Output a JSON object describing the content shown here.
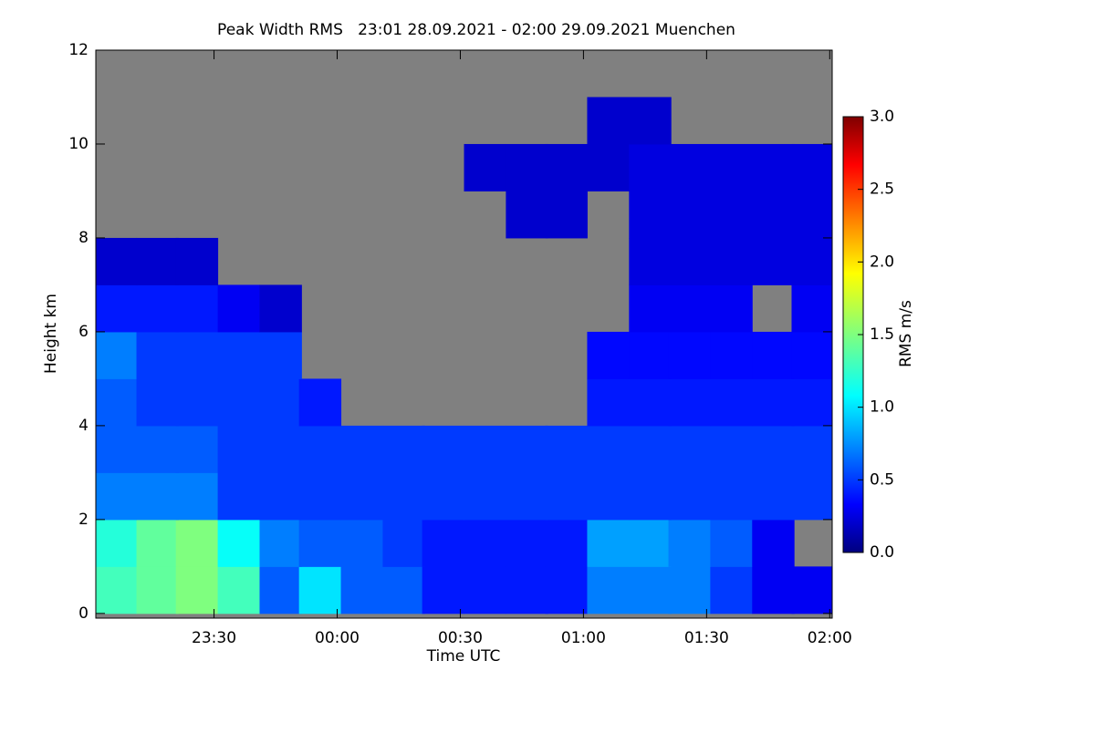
{
  "chart_data": {
    "type": "heatmap",
    "title": "Peak Width RMS   23:01 28.09.2021 - 02:00 29.09.2021 Muenchen",
    "x_label": "Time UTC",
    "y_label": "Height km",
    "colorbar_label": "RMS m/s",
    "background_color": "#808080",
    "x": [
      23.1,
      23.27,
      23.43,
      23.6,
      23.77,
      23.93,
      24.1,
      24.27,
      24.43,
      24.6,
      24.77,
      24.93,
      25.1,
      25.27,
      25.43,
      25.6,
      25.77,
      25.93
    ],
    "y": [
      0.5,
      1.5,
      2.5,
      3.5,
      4.5,
      5.5,
      6.5,
      7.5,
      8.5,
      9.5,
      10.5,
      11.5
    ],
    "values": [
      [
        1.3,
        1.4,
        1.5,
        1.3,
        0.6,
        1.0,
        0.6,
        0.6,
        0.4,
        0.4,
        0.4,
        0.4,
        0.7,
        0.7,
        0.7,
        0.5,
        0.3,
        0.3
      ],
      [
        1.2,
        1.4,
        1.5,
        1.1,
        0.7,
        0.6,
        0.6,
        0.5,
        0.4,
        0.4,
        0.4,
        0.4,
        0.8,
        0.8,
        0.7,
        0.6,
        0.3,
        null
      ],
      [
        0.7,
        0.7,
        0.7,
        0.5,
        0.5,
        0.5,
        0.5,
        0.5,
        0.5,
        0.5,
        0.5,
        0.5,
        0.5,
        0.5,
        0.5,
        0.5,
        0.5,
        0.5
      ],
      [
        0.6,
        0.6,
        0.6,
        0.5,
        0.5,
        0.5,
        0.5,
        0.5,
        0.5,
        0.5,
        0.5,
        0.5,
        0.5,
        0.5,
        0.5,
        0.5,
        0.5,
        0.5
      ],
      [
        0.6,
        0.5,
        0.5,
        0.5,
        0.5,
        0.4,
        null,
        null,
        null,
        null,
        null,
        null,
        0.4,
        0.4,
        0.4,
        0.4,
        0.4,
        0.4
      ],
      [
        0.7,
        0.5,
        0.5,
        0.5,
        0.5,
        null,
        null,
        null,
        null,
        null,
        null,
        null,
        0.35,
        0.35,
        0.35,
        0.35,
        0.35,
        0.35
      ],
      [
        0.4,
        0.4,
        0.4,
        0.3,
        0.2,
        null,
        null,
        null,
        null,
        null,
        null,
        null,
        null,
        0.3,
        0.3,
        0.3,
        null,
        0.3
      ],
      [
        0.2,
        0.2,
        0.2,
        null,
        null,
        null,
        null,
        null,
        null,
        null,
        null,
        null,
        null,
        0.25,
        0.25,
        0.25,
        0.25,
        0.25
      ],
      [
        null,
        null,
        null,
        null,
        null,
        null,
        null,
        null,
        null,
        null,
        0.2,
        0.2,
        null,
        0.25,
        0.25,
        0.25,
        0.25,
        0.25
      ],
      [
        null,
        null,
        null,
        null,
        null,
        null,
        null,
        null,
        null,
        0.2,
        0.2,
        0.2,
        0.2,
        0.25,
        0.25,
        0.25,
        0.25,
        0.25
      ],
      [
        null,
        null,
        null,
        null,
        null,
        null,
        null,
        null,
        null,
        null,
        null,
        null,
        0.2,
        0.2,
        null,
        null,
        null,
        null
      ],
      [
        null,
        null,
        null,
        null,
        null,
        null,
        null,
        null,
        null,
        null,
        null,
        null,
        null,
        null,
        null,
        null,
        null,
        null
      ]
    ],
    "xlim": [
      23.02,
      26.01
    ],
    "xticks": [
      {
        "value": 23.5,
        "label": "23:30"
      },
      {
        "value": 24.0,
        "label": "00:00"
      },
      {
        "value": 24.5,
        "label": "00:30"
      },
      {
        "value": 25.0,
        "label": "01:00"
      },
      {
        "value": 25.5,
        "label": "01:30"
      },
      {
        "value": 26.0,
        "label": "02:00"
      }
    ],
    "ylim": [
      -0.1,
      12
    ],
    "yticks": [
      0,
      2,
      4,
      6,
      8,
      10,
      12
    ],
    "zlim": [
      0,
      3
    ],
    "zticks": [
      {
        "value": 0,
        "label": "0.0"
      },
      {
        "value": 0.5,
        "label": "0.5"
      },
      {
        "value": 1,
        "label": "1.0"
      },
      {
        "value": 1.5,
        "label": "1.5"
      },
      {
        "value": 2,
        "label": "2.0"
      },
      {
        "value": 2.5,
        "label": "2.5"
      },
      {
        "value": 3,
        "label": "3.0"
      }
    ],
    "colormap": "jet"
  }
}
